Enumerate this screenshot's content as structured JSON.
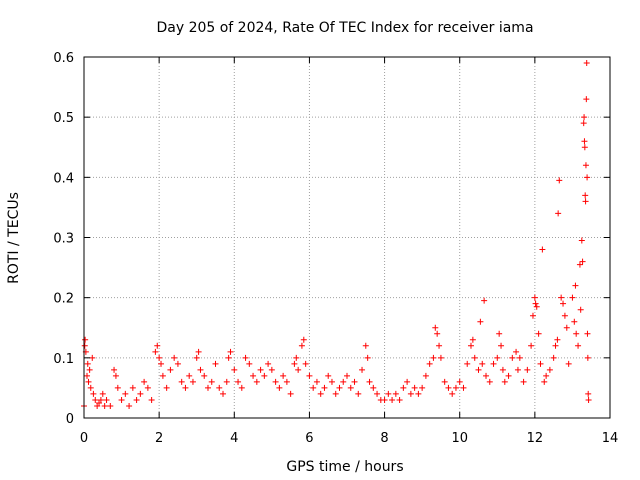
{
  "chart_data": {
    "type": "scatter",
    "title": "Day 205 of 2024, Rate Of TEC Index for receiver iama",
    "xlabel": "GPS time / hours",
    "ylabel": "ROTI / TECUs",
    "xlim": [
      0,
      14
    ],
    "ylim": [
      0,
      0.6
    ],
    "xticks": [
      "0",
      "2",
      "4",
      "6",
      "8",
      "10",
      "12",
      "14"
    ],
    "yticks": [
      "0",
      "0.1",
      "0.2",
      "0.3",
      "0.4",
      "0.5",
      "0.6"
    ],
    "xtick_values": [
      0,
      2,
      4,
      6,
      8,
      10,
      12,
      14
    ],
    "ytick_values": [
      0,
      0.1,
      0.2,
      0.3,
      0.4,
      0.5,
      0.6
    ],
    "grid": true,
    "marker": "+",
    "color": "#ff0000",
    "series": [
      {
        "name": "ROTI",
        "points": [
          [
            0.0,
            0.02
          ],
          [
            0.02,
            0.12
          ],
          [
            0.03,
            0.13
          ],
          [
            0.05,
            0.11
          ],
          [
            0.08,
            0.07
          ],
          [
            0.1,
            0.09
          ],
          [
            0.12,
            0.06
          ],
          [
            0.15,
            0.08
          ],
          [
            0.18,
            0.05
          ],
          [
            0.22,
            0.1
          ],
          [
            0.25,
            0.04
          ],
          [
            0.3,
            0.03
          ],
          [
            0.35,
            0.02
          ],
          [
            0.4,
            0.025
          ],
          [
            0.45,
            0.03
          ],
          [
            0.5,
            0.04
          ],
          [
            0.55,
            0.02
          ],
          [
            0.6,
            0.03
          ],
          [
            0.7,
            0.02
          ],
          [
            0.8,
            0.08
          ],
          [
            0.85,
            0.07
          ],
          [
            0.9,
            0.05
          ],
          [
            1.0,
            0.03
          ],
          [
            1.1,
            0.04
          ],
          [
            1.2,
            0.02
          ],
          [
            1.3,
            0.05
          ],
          [
            1.4,
            0.03
          ],
          [
            1.5,
            0.04
          ],
          [
            1.6,
            0.06
          ],
          [
            1.7,
            0.05
          ],
          [
            1.8,
            0.03
          ],
          [
            1.9,
            0.11
          ],
          [
            1.95,
            0.12
          ],
          [
            2.0,
            0.1
          ],
          [
            2.05,
            0.09
          ],
          [
            2.1,
            0.07
          ],
          [
            2.2,
            0.05
          ],
          [
            2.3,
            0.08
          ],
          [
            2.4,
            0.1
          ],
          [
            2.5,
            0.09
          ],
          [
            2.6,
            0.06
          ],
          [
            2.7,
            0.05
          ],
          [
            2.8,
            0.07
          ],
          [
            2.9,
            0.06
          ],
          [
            3.0,
            0.1
          ],
          [
            3.05,
            0.11
          ],
          [
            3.1,
            0.08
          ],
          [
            3.2,
            0.07
          ],
          [
            3.3,
            0.05
          ],
          [
            3.4,
            0.06
          ],
          [
            3.5,
            0.09
          ],
          [
            3.6,
            0.05
          ],
          [
            3.7,
            0.04
          ],
          [
            3.8,
            0.06
          ],
          [
            3.85,
            0.1
          ],
          [
            3.9,
            0.11
          ],
          [
            4.0,
            0.08
          ],
          [
            4.1,
            0.06
          ],
          [
            4.2,
            0.05
          ],
          [
            4.3,
            0.1
          ],
          [
            4.4,
            0.09
          ],
          [
            4.5,
            0.07
          ],
          [
            4.6,
            0.06
          ],
          [
            4.7,
            0.08
          ],
          [
            4.8,
            0.07
          ],
          [
            4.9,
            0.09
          ],
          [
            5.0,
            0.08
          ],
          [
            5.1,
            0.06
          ],
          [
            5.2,
            0.05
          ],
          [
            5.3,
            0.07
          ],
          [
            5.4,
            0.06
          ],
          [
            5.5,
            0.04
          ],
          [
            5.6,
            0.09
          ],
          [
            5.65,
            0.1
          ],
          [
            5.7,
            0.08
          ],
          [
            5.8,
            0.12
          ],
          [
            5.85,
            0.13
          ],
          [
            5.9,
            0.09
          ],
          [
            6.0,
            0.07
          ],
          [
            6.1,
            0.05
          ],
          [
            6.2,
            0.06
          ],
          [
            6.3,
            0.04
          ],
          [
            6.4,
            0.05
          ],
          [
            6.5,
            0.07
          ],
          [
            6.6,
            0.06
          ],
          [
            6.7,
            0.04
          ],
          [
            6.8,
            0.05
          ],
          [
            6.9,
            0.06
          ],
          [
            7.0,
            0.07
          ],
          [
            7.1,
            0.05
          ],
          [
            7.2,
            0.06
          ],
          [
            7.3,
            0.04
          ],
          [
            7.4,
            0.08
          ],
          [
            7.5,
            0.12
          ],
          [
            7.55,
            0.1
          ],
          [
            7.6,
            0.06
          ],
          [
            7.7,
            0.05
          ],
          [
            7.8,
            0.04
          ],
          [
            7.9,
            0.03
          ],
          [
            8.0,
            0.03
          ],
          [
            8.1,
            0.04
          ],
          [
            8.2,
            0.03
          ],
          [
            8.3,
            0.04
          ],
          [
            8.4,
            0.03
          ],
          [
            8.5,
            0.05
          ],
          [
            8.6,
            0.06
          ],
          [
            8.7,
            0.04
          ],
          [
            8.8,
            0.05
          ],
          [
            8.9,
            0.04
          ],
          [
            9.0,
            0.05
          ],
          [
            9.1,
            0.07
          ],
          [
            9.2,
            0.09
          ],
          [
            9.3,
            0.1
          ],
          [
            9.35,
            0.15
          ],
          [
            9.4,
            0.14
          ],
          [
            9.45,
            0.12
          ],
          [
            9.5,
            0.1
          ],
          [
            9.6,
            0.06
          ],
          [
            9.7,
            0.05
          ],
          [
            9.8,
            0.04
          ],
          [
            9.9,
            0.05
          ],
          [
            10.0,
            0.06
          ],
          [
            10.1,
            0.05
          ],
          [
            10.2,
            0.09
          ],
          [
            10.3,
            0.12
          ],
          [
            10.35,
            0.13
          ],
          [
            10.4,
            0.1
          ],
          [
            10.5,
            0.08
          ],
          [
            10.55,
            0.16
          ],
          [
            10.6,
            0.09
          ],
          [
            10.65,
            0.195
          ],
          [
            10.7,
            0.07
          ],
          [
            10.8,
            0.06
          ],
          [
            10.9,
            0.09
          ],
          [
            11.0,
            0.1
          ],
          [
            11.05,
            0.14
          ],
          [
            11.1,
            0.12
          ],
          [
            11.15,
            0.08
          ],
          [
            11.2,
            0.06
          ],
          [
            11.3,
            0.07
          ],
          [
            11.4,
            0.1
          ],
          [
            11.5,
            0.11
          ],
          [
            11.55,
            0.08
          ],
          [
            11.6,
            0.1
          ],
          [
            11.7,
            0.06
          ],
          [
            11.8,
            0.08
          ],
          [
            11.9,
            0.12
          ],
          [
            11.95,
            0.17
          ],
          [
            12.0,
            0.2
          ],
          [
            12.02,
            0.19
          ],
          [
            12.05,
            0.185
          ],
          [
            12.1,
            0.14
          ],
          [
            12.15,
            0.09
          ],
          [
            12.2,
            0.28
          ],
          [
            12.25,
            0.06
          ],
          [
            12.3,
            0.07
          ],
          [
            12.4,
            0.08
          ],
          [
            12.5,
            0.1
          ],
          [
            12.55,
            0.12
          ],
          [
            12.6,
            0.13
          ],
          [
            12.62,
            0.34
          ],
          [
            12.65,
            0.395
          ],
          [
            12.7,
            0.2
          ],
          [
            12.75,
            0.19
          ],
          [
            12.8,
            0.17
          ],
          [
            12.85,
            0.15
          ],
          [
            12.9,
            0.09
          ],
          [
            13.0,
            0.2
          ],
          [
            13.05,
            0.16
          ],
          [
            13.08,
            0.22
          ],
          [
            13.1,
            0.14
          ],
          [
            13.15,
            0.12
          ],
          [
            13.2,
            0.255
          ],
          [
            13.22,
            0.18
          ],
          [
            13.25,
            0.295
          ],
          [
            13.27,
            0.26
          ],
          [
            13.3,
            0.49
          ],
          [
            13.31,
            0.5
          ],
          [
            13.32,
            0.46
          ],
          [
            13.33,
            0.45
          ],
          [
            13.34,
            0.37
          ],
          [
            13.35,
            0.36
          ],
          [
            13.36,
            0.42
          ],
          [
            13.37,
            0.53
          ],
          [
            13.38,
            0.59
          ],
          [
            13.39,
            0.4
          ],
          [
            13.4,
            0.14
          ],
          [
            13.41,
            0.1
          ],
          [
            13.42,
            0.04
          ],
          [
            13.43,
            0.03
          ]
        ]
      }
    ]
  }
}
